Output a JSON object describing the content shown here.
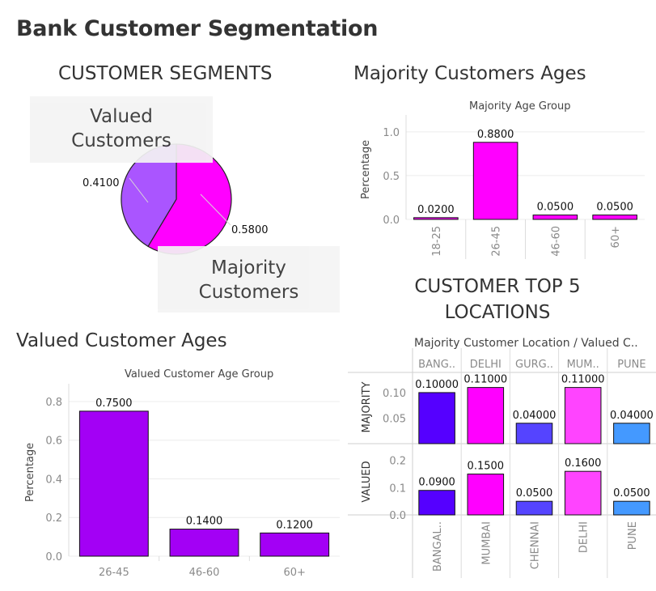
{
  "title": "Bank Customer Segmentation",
  "segments": {
    "heading": "CUSTOMER SEGMENTS",
    "callouts": [
      "Valued Customers",
      "Majority Customers"
    ]
  },
  "majority_ages": {
    "heading": "Majority Customers Ages",
    "subtitle": "Majority Age Group",
    "ylabel": "Percentage"
  },
  "valued_ages": {
    "heading": "Valued Customer Ages",
    "subtitle": "Valued Customer Age Group",
    "ylabel": "Percentage"
  },
  "locations": {
    "heading_line1": "CUSTOMER TOP 5",
    "heading_line2": "LOCATIONS",
    "subtitle": "Majority Customer Location  /  Valued C.."
  },
  "chart_data": [
    {
      "type": "pie",
      "title": "CUSTOMER SEGMENTS",
      "slices": [
        {
          "label": "Majority Customers",
          "value": 0.58,
          "value_label": "0.5800",
          "color": "#ff00ff"
        },
        {
          "label": "Valued Customers",
          "value": 0.41,
          "value_label": "0.4100",
          "color": "#aa55ff"
        }
      ]
    },
    {
      "type": "bar",
      "title": "Majority Age Group",
      "categories": [
        "18-25",
        "26-45",
        "46-60",
        "60+"
      ],
      "values": [
        0.02,
        0.88,
        0.05,
        0.05
      ],
      "value_labels": [
        "0.0200",
        "0.8800",
        "0.0500",
        "0.0500"
      ],
      "ylabel": "Percentage",
      "yticks": [
        0.0,
        0.5,
        1.0
      ],
      "ytick_labels": [
        "0.0",
        "0.5",
        "1.0"
      ],
      "ylim": [
        0,
        1.1
      ],
      "color": "#ff00ff",
      "grid": true
    },
    {
      "type": "bar",
      "title": "Valued Customer Age Group",
      "categories": [
        "26-45",
        "46-60",
        "60+"
      ],
      "values": [
        0.75,
        0.14,
        0.12
      ],
      "value_labels": [
        "0.7500",
        "0.1400",
        "0.1200"
      ],
      "ylabel": "Percentage",
      "yticks": [
        0.0,
        0.2,
        0.4,
        0.6,
        0.8
      ],
      "ytick_labels": [
        "0.0",
        "0.2",
        "0.4",
        "0.6",
        "0.8"
      ],
      "ylim": [
        0,
        0.85
      ],
      "color": "#a300f5",
      "grid": true
    },
    {
      "type": "bar",
      "title": "Majority Customer Location / Valued C..",
      "panels": [
        {
          "name": "MAJORITY",
          "categories": [
            "BANG..",
            "DELHI",
            "GURG..",
            "MUM..",
            "PUNE"
          ],
          "values": [
            0.1,
            0.11,
            0.04,
            0.11,
            0.04
          ],
          "value_labels": [
            "0.10000",
            "0.11000",
            "0.04000",
            "0.11000",
            "0.04000"
          ],
          "yticks": [
            0.05,
            0.1
          ],
          "ytick_labels": [
            "0.05",
            "0.10"
          ],
          "ylim": [
            0,
            0.13
          ]
        },
        {
          "name": "VALUED",
          "categories": [
            "BANGAL..",
            "MUMBAI",
            "CHENNAI",
            "DELHI",
            "PUNE"
          ],
          "values": [
            0.09,
            0.15,
            0.05,
            0.16,
            0.05
          ],
          "value_labels": [
            "0.0900",
            "0.1500",
            "0.0500",
            "0.1600",
            "0.0500"
          ],
          "yticks": [
            0.0,
            0.1,
            0.2
          ],
          "ytick_labels": [
            "0.0",
            "0.1",
            "0.2"
          ],
          "ylim": [
            0,
            0.22
          ]
        }
      ],
      "colors": [
        "#5500ff",
        "#ff00ff",
        "#5544ff",
        "#ff44ff",
        "#4499ff"
      ]
    }
  ]
}
